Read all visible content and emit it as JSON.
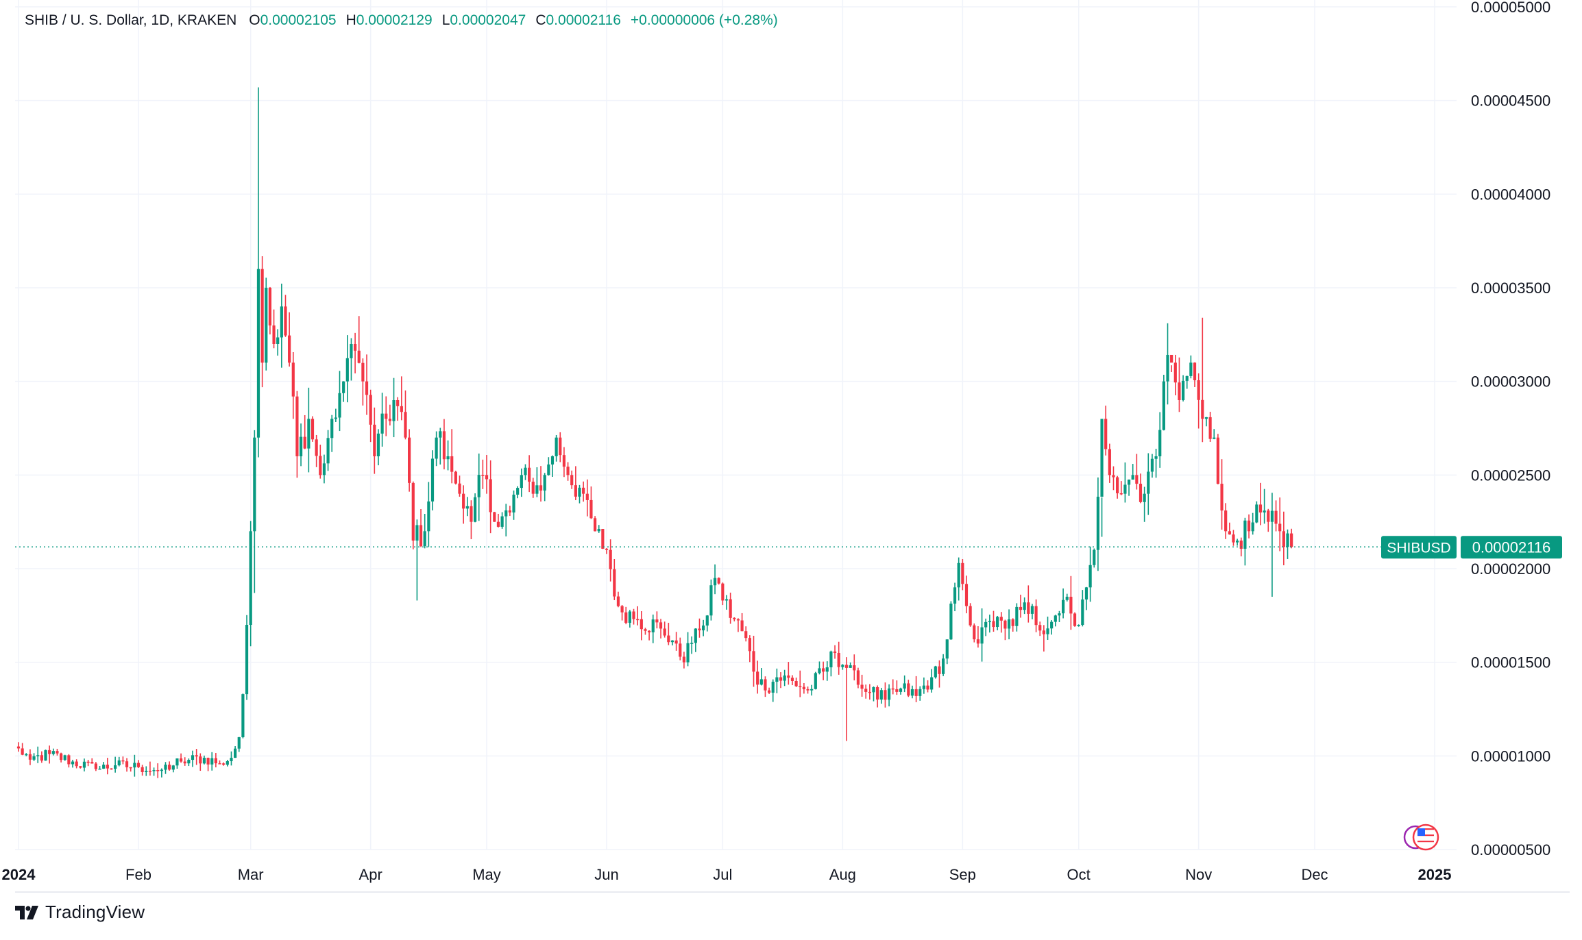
{
  "legend": {
    "symbol": "SHIB / U. S. Dollar, 1D, KRAKEN",
    "open_key": "O",
    "open": "0.00002105",
    "high_key": "H",
    "high": "0.00002129",
    "low_key": "L",
    "low": "0.00002047",
    "close_key": "C",
    "close": "0.00002116",
    "change": "+0.00000006 (+0.28%)"
  },
  "price_badge": {
    "ticker": "SHIBUSD",
    "price": "0.00002116"
  },
  "brand": {
    "name": "TradingView"
  },
  "colors": {
    "up": "#089981",
    "down": "#F23645",
    "grid": "#F0F3FA",
    "axis_text": "#131722"
  },
  "icons": [
    "flag-icon",
    "tradingview-logo-icon"
  ],
  "chart_data": {
    "type": "candlestick",
    "title": "SHIB / U. S. Dollar, 1D, KRAKEN",
    "ylim": [
      4.5e-06,
      5e-05
    ],
    "y_ticks": [
      "0.00005000",
      "0.00004500",
      "0.00004000",
      "0.00003500",
      "0.00003000",
      "0.00002500",
      "0.00002000",
      "0.00001500",
      "0.00001000",
      "0.00000500"
    ],
    "y_tick_values": [
      5e-05,
      4.5e-05,
      4e-05,
      3.5e-05,
      3e-05,
      2.5e-05,
      2e-05,
      1.5e-05,
      1e-05,
      5e-06
    ],
    "x_ticks": [
      "2024",
      "Feb",
      "Mar",
      "Apr",
      "May",
      "Jun",
      "Jul",
      "Aug",
      "Sep",
      "Oct",
      "Nov",
      "Dec",
      "2025"
    ],
    "x_tick_days": [
      0,
      31,
      60,
      91,
      121,
      152,
      182,
      213,
      244,
      274,
      305,
      335,
      366
    ],
    "last_price": 2.116e-05,
    "grid": true,
    "anchors": [
      {
        "d": 0,
        "c": 1.04e-05
      },
      {
        "d": 3,
        "c": 9.8e-06
      },
      {
        "d": 8,
        "c": 1.01e-05
      },
      {
        "d": 14,
        "c": 9.7e-06
      },
      {
        "d": 20,
        "c": 9.3e-06
      },
      {
        "d": 25,
        "c": 9.5e-06
      },
      {
        "d": 31,
        "c": 9.4e-06
      },
      {
        "d": 36,
        "c": 9.2e-06
      },
      {
        "d": 42,
        "c": 9.7e-06
      },
      {
        "d": 48,
        "c": 9.9e-06
      },
      {
        "d": 52,
        "c": 9.6e-06
      },
      {
        "d": 55,
        "c": 9.9e-06
      },
      {
        "d": 57,
        "c": 1.1e-05
      },
      {
        "d": 58,
        "c": 1.33e-05
      },
      {
        "d": 59,
        "c": 1.7e-05
      },
      {
        "d": 60,
        "c": 2.2e-05
      },
      {
        "d": 61,
        "c": 2.7e-05
      },
      {
        "d": 62,
        "c": 3.6e-05
      },
      {
        "d": 63,
        "c": 3.1e-05
      },
      {
        "d": 64,
        "c": 3.5e-05
      },
      {
        "d": 66,
        "c": 3.2e-05
      },
      {
        "d": 68,
        "c": 3.4e-05
      },
      {
        "d": 70,
        "c": 3.1e-05
      },
      {
        "d": 72,
        "c": 2.6e-05
      },
      {
        "d": 75,
        "c": 2.8e-05
      },
      {
        "d": 78,
        "c": 2.5e-05
      },
      {
        "d": 81,
        "c": 2.8e-05
      },
      {
        "d": 84,
        "c": 3e-05
      },
      {
        "d": 86,
        "c": 3.2e-05
      },
      {
        "d": 89,
        "c": 3e-05
      },
      {
        "d": 92,
        "c": 2.6e-05
      },
      {
        "d": 95,
        "c": 2.8e-05
      },
      {
        "d": 97,
        "c": 2.9e-05
      },
      {
        "d": 100,
        "c": 2.7e-05
      },
      {
        "d": 102,
        "c": 2.15e-05
      },
      {
        "d": 105,
        "c": 2.2e-05
      },
      {
        "d": 108,
        "c": 2.7e-05
      },
      {
        "d": 111,
        "c": 2.6e-05
      },
      {
        "d": 114,
        "c": 2.4e-05
      },
      {
        "d": 117,
        "c": 2.25e-05
      },
      {
        "d": 120,
        "c": 2.5e-05
      },
      {
        "d": 123,
        "c": 2.25e-05
      },
      {
        "d": 127,
        "c": 2.3e-05
      },
      {
        "d": 130,
        "c": 2.5e-05
      },
      {
        "d": 133,
        "c": 2.4e-05
      },
      {
        "d": 136,
        "c": 2.5e-05
      },
      {
        "d": 139,
        "c": 2.7e-05
      },
      {
        "d": 142,
        "c": 2.5e-05
      },
      {
        "d": 146,
        "c": 2.4e-05
      },
      {
        "d": 149,
        "c": 2.2e-05
      },
      {
        "d": 152,
        "c": 2.1e-05
      },
      {
        "d": 155,
        "c": 1.8e-05
      },
      {
        "d": 160,
        "c": 1.73e-05
      },
      {
        "d": 166,
        "c": 1.68e-05
      },
      {
        "d": 170,
        "c": 1.6e-05
      },
      {
        "d": 172,
        "c": 1.5e-05
      },
      {
        "d": 175,
        "c": 1.68e-05
      },
      {
        "d": 178,
        "c": 1.75e-05
      },
      {
        "d": 180,
        "c": 1.95e-05
      },
      {
        "d": 182,
        "c": 1.83e-05
      },
      {
        "d": 185,
        "c": 1.73e-05
      },
      {
        "d": 188,
        "c": 1.63e-05
      },
      {
        "d": 190,
        "c": 1.45e-05
      },
      {
        "d": 193,
        "c": 1.35e-05
      },
      {
        "d": 196,
        "c": 1.42e-05
      },
      {
        "d": 200,
        "c": 1.4e-05
      },
      {
        "d": 204,
        "c": 1.35e-05
      },
      {
        "d": 208,
        "c": 1.45e-05
      },
      {
        "d": 211,
        "c": 1.55e-05
      },
      {
        "d": 214,
        "c": 1.47e-05
      },
      {
        "d": 217,
        "c": 1.38e-05
      },
      {
        "d": 220,
        "c": 1.34e-05
      },
      {
        "d": 224,
        "c": 1.3e-05
      },
      {
        "d": 228,
        "c": 1.36e-05
      },
      {
        "d": 232,
        "c": 1.32e-05
      },
      {
        "d": 236,
        "c": 1.42e-05
      },
      {
        "d": 239,
        "c": 1.52e-05
      },
      {
        "d": 242,
        "c": 1.9e-05
      },
      {
        "d": 243,
        "c": 2.03e-05
      },
      {
        "d": 245,
        "c": 1.8e-05
      },
      {
        "d": 248,
        "c": 1.6e-05
      },
      {
        "d": 251,
        "c": 1.72e-05
      },
      {
        "d": 255,
        "c": 1.68e-05
      },
      {
        "d": 259,
        "c": 1.78e-05
      },
      {
        "d": 262,
        "c": 1.8e-05
      },
      {
        "d": 265,
        "c": 1.65e-05
      },
      {
        "d": 268,
        "c": 1.75e-05
      },
      {
        "d": 271,
        "c": 1.85e-05
      },
      {
        "d": 274,
        "c": 1.7e-05
      },
      {
        "d": 276,
        "c": 1.9e-05
      },
      {
        "d": 278,
        "c": 2.1e-05
      },
      {
        "d": 280,
        "c": 2.8e-05
      },
      {
        "d": 282,
        "c": 2.5e-05
      },
      {
        "d": 285,
        "c": 2.4e-05
      },
      {
        "d": 288,
        "c": 2.5e-05
      },
      {
        "d": 291,
        "c": 2.4e-05
      },
      {
        "d": 294,
        "c": 2.6e-05
      },
      {
        "d": 296,
        "c": 3e-05
      },
      {
        "d": 298,
        "c": 3.1e-05
      },
      {
        "d": 300,
        "c": 2.9e-05
      },
      {
        "d": 303,
        "c": 3.1e-05
      },
      {
        "d": 306,
        "c": 2.8e-05
      },
      {
        "d": 309,
        "c": 2.7e-05
      },
      {
        "d": 312,
        "c": 2.2e-05
      },
      {
        "d": 315,
        "c": 2.15e-05
      },
      {
        "d": 318,
        "c": 2.2e-05
      },
      {
        "d": 321,
        "c": 2.3e-05
      },
      {
        "d": 323,
        "c": 2.25e-05
      },
      {
        "d": 326,
        "c": 2.2e-05
      },
      {
        "d": 329,
        "c": 2.116e-05
      }
    ]
  }
}
